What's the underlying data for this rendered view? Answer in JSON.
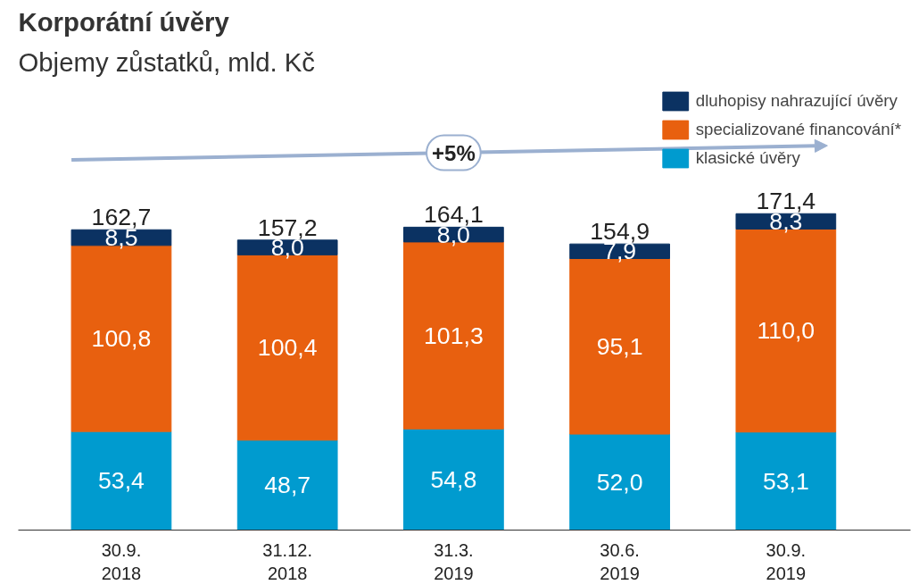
{
  "chart_data": {
    "type": "bar",
    "stacked": true,
    "title": "Korporátní úvěry",
    "subtitle": "Objemy zůstatků, mld. Kč",
    "categories": [
      "30.9.\n2018",
      "31.12.\n2018",
      "31.3.\n2019",
      "30.6.\n2019",
      "30.9.\n2019"
    ],
    "series": [
      {
        "name": "klasické úvěry",
        "color": "#009bcf",
        "values": [
          53.4,
          48.7,
          54.8,
          52.0,
          53.1
        ],
        "value_labels": [
          "53,4",
          "48,7",
          "54,8",
          "52,0",
          "53,1"
        ]
      },
      {
        "name": "specializované financování*",
        "color": "#e8600f",
        "values": [
          100.8,
          100.4,
          101.3,
          95.1,
          110.0
        ],
        "value_labels": [
          "100,8",
          "100,4",
          "101,3",
          "95,1",
          "110,0"
        ]
      },
      {
        "name": "dluhopisy nahrazující úvěry",
        "color": "#0b3262",
        "values": [
          8.5,
          8.0,
          8.0,
          7.9,
          8.3
        ],
        "value_labels": [
          "8,5",
          "8,0",
          "8,0",
          "7,9",
          "8,3"
        ]
      }
    ],
    "totals": [
      "162,7",
      "157,2",
      "164,1",
      "154,9",
      "171,4"
    ],
    "annotations": [
      "+5%"
    ],
    "legend": "top right",
    "grid": false
  }
}
